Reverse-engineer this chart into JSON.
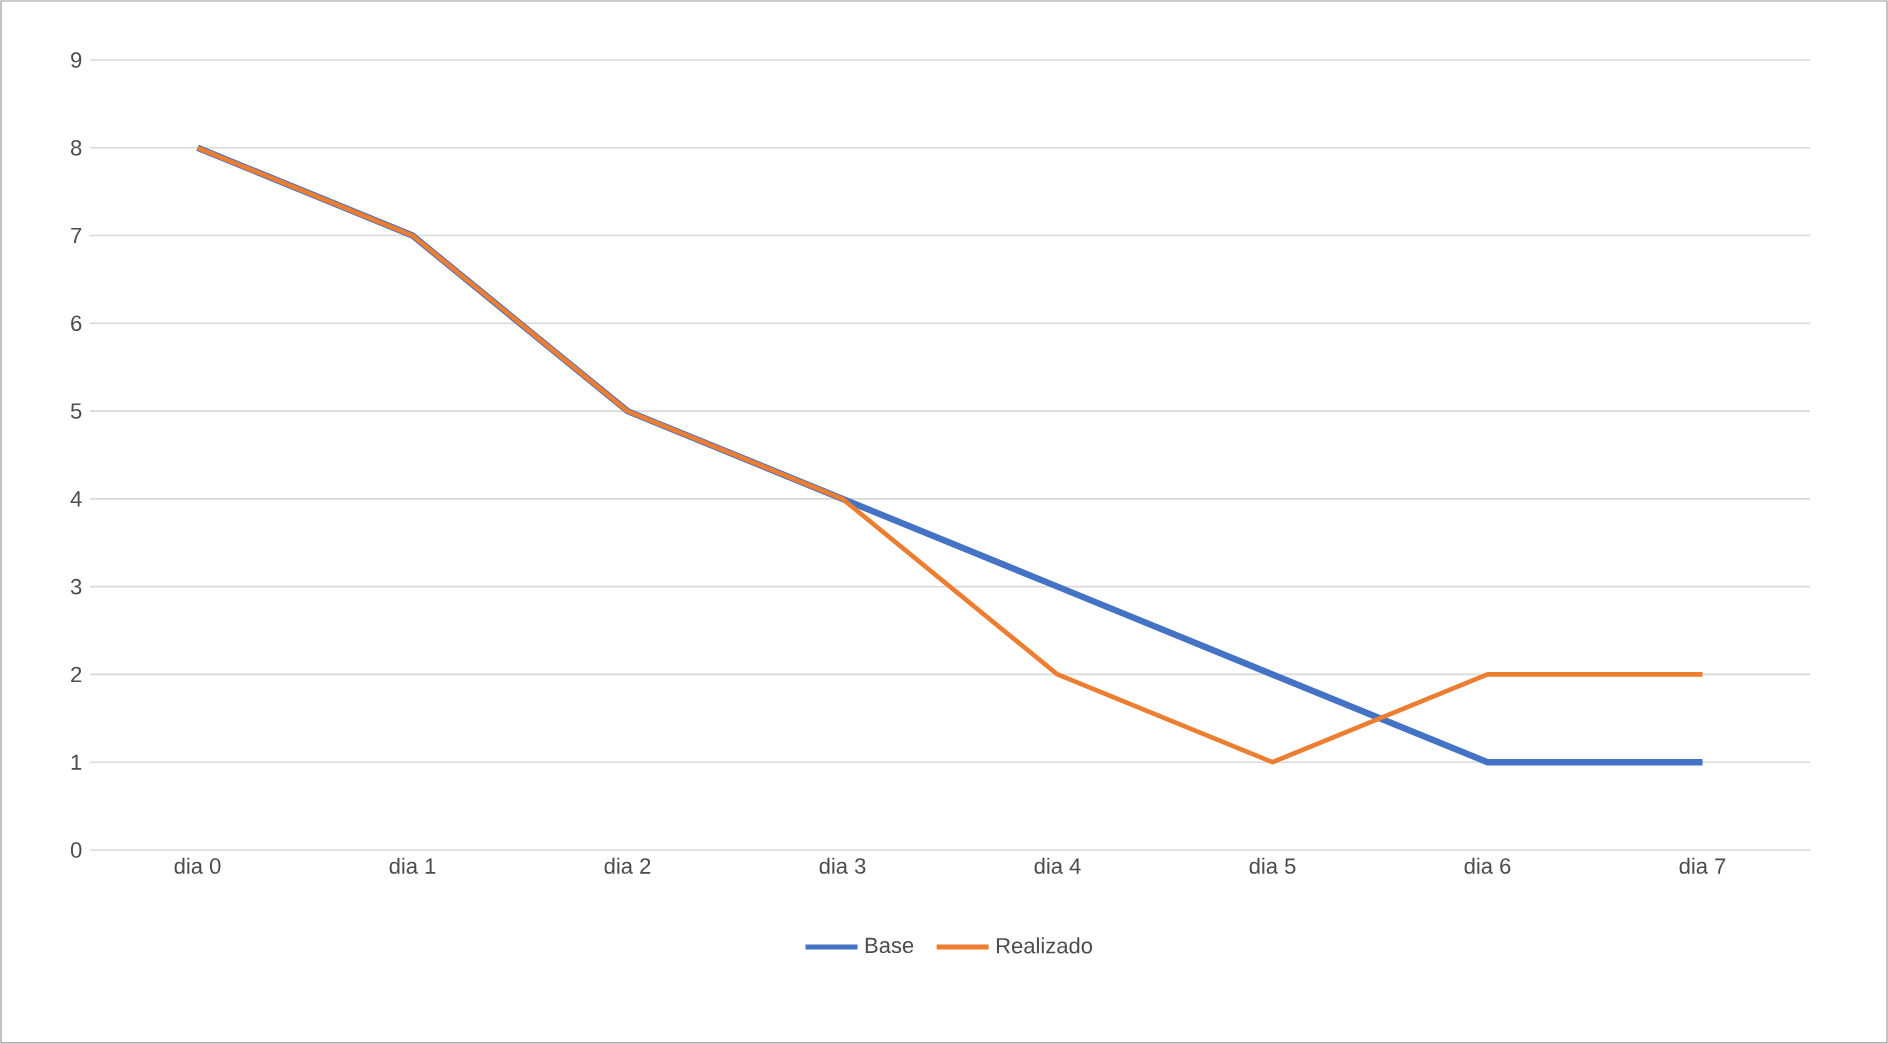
{
  "chart_data": {
    "type": "line",
    "categories": [
      "dia 0",
      "dia 1",
      "dia 2",
      "dia 3",
      "dia 4",
      "dia 5",
      "dia 6",
      "dia 7"
    ],
    "series": [
      {
        "name": "Base",
        "color": "#4472c4",
        "values": [
          8,
          7,
          5,
          4,
          3,
          2,
          1,
          1
        ]
      },
      {
        "name": "Realizado",
        "color": "#ed7d31",
        "values": [
          8,
          7,
          5,
          4,
          2,
          1,
          2,
          2
        ]
      }
    ],
    "ylim": [
      0,
      9
    ],
    "yticks": [
      0,
      1,
      2,
      3,
      4,
      5,
      6,
      7,
      8,
      9
    ],
    "grid": "y",
    "legend": "bottom"
  }
}
